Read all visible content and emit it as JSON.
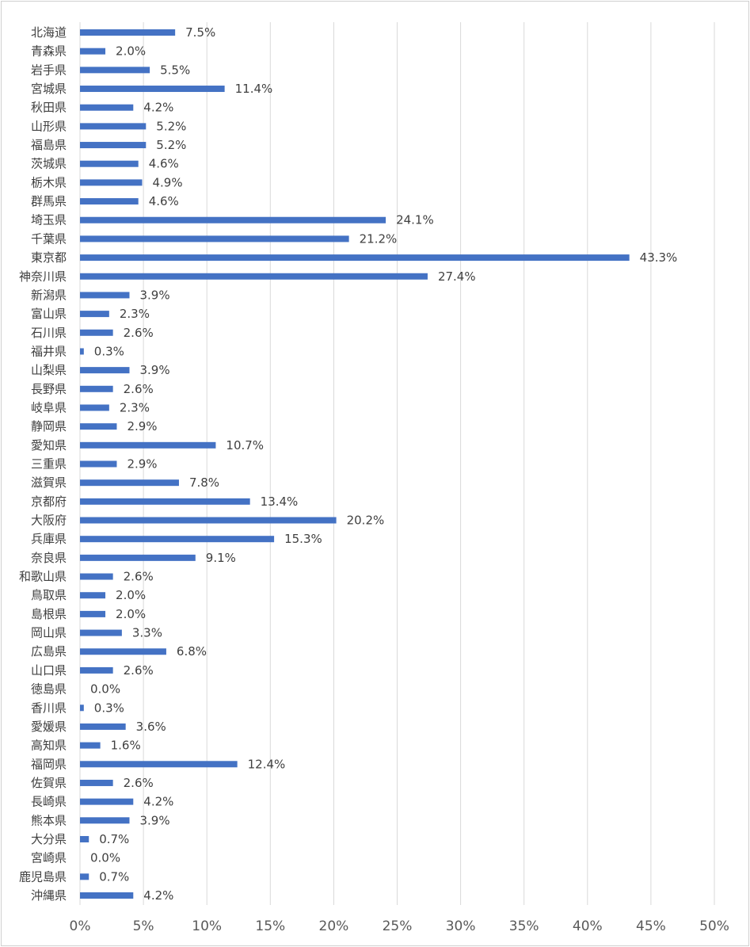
{
  "chart_data": {
    "type": "bar",
    "orientation": "horizontal",
    "title": "",
    "xlabel": "",
    "ylabel": "",
    "xlim": [
      0,
      50
    ],
    "grid": true,
    "legend": "none",
    "bar_color": "#4472c4",
    "x_ticks": [
      "0%",
      "5%",
      "10%",
      "15%",
      "20%",
      "25%",
      "30%",
      "35%",
      "40%",
      "45%",
      "50%"
    ],
    "categories": [
      "北海道",
      "青森県",
      "岩手県",
      "宮城県",
      "秋田県",
      "山形県",
      "福島県",
      "茨城県",
      "栃木県",
      "群馬県",
      "埼玉県",
      "千葉県",
      "東京都",
      "神奈川県",
      "新潟県",
      "富山県",
      "石川県",
      "福井県",
      "山梨県",
      "長野県",
      "岐阜県",
      "静岡県",
      "愛知県",
      "三重県",
      "滋賀県",
      "京都府",
      "大阪府",
      "兵庫県",
      "奈良県",
      "和歌山県",
      "鳥取県",
      "島根県",
      "岡山県",
      "広島県",
      "山口県",
      "徳島県",
      "香川県",
      "愛媛県",
      "高知県",
      "福岡県",
      "佐賀県",
      "長崎県",
      "熊本県",
      "大分県",
      "宮崎県",
      "鹿児島県",
      "沖縄県"
    ],
    "values": [
      7.5,
      2.0,
      5.5,
      11.4,
      4.2,
      5.2,
      5.2,
      4.6,
      4.9,
      4.6,
      24.1,
      21.2,
      43.3,
      27.4,
      3.9,
      2.3,
      2.6,
      0.3,
      3.9,
      2.6,
      2.3,
      2.9,
      10.7,
      2.9,
      7.8,
      13.4,
      20.2,
      15.3,
      9.1,
      2.6,
      2.0,
      2.0,
      3.3,
      6.8,
      2.6,
      0.0,
      0.3,
      3.6,
      1.6,
      12.4,
      2.6,
      4.2,
      3.9,
      0.7,
      0.0,
      0.7,
      4.2
    ],
    "data_labels": [
      "7.5%",
      "2.0%",
      "5.5%",
      "11.4%",
      "4.2%",
      "5.2%",
      "5.2%",
      "4.6%",
      "4.9%",
      "4.6%",
      "24.1%",
      "21.2%",
      "43.3%",
      "27.4%",
      "3.9%",
      "2.3%",
      "2.6%",
      "0.3%",
      "3.9%",
      "2.6%",
      "2.3%",
      "2.9%",
      "10.7%",
      "2.9%",
      "7.8%",
      "13.4%",
      "20.2%",
      "15.3%",
      "9.1%",
      "2.6%",
      "2.0%",
      "2.0%",
      "3.3%",
      "6.8%",
      "2.6%",
      "0.0%",
      "0.3%",
      "3.6%",
      "1.6%",
      "12.4%",
      "2.6%",
      "4.2%",
      "3.9%",
      "0.7%",
      "0.0%",
      "0.7%",
      "4.2%"
    ]
  }
}
